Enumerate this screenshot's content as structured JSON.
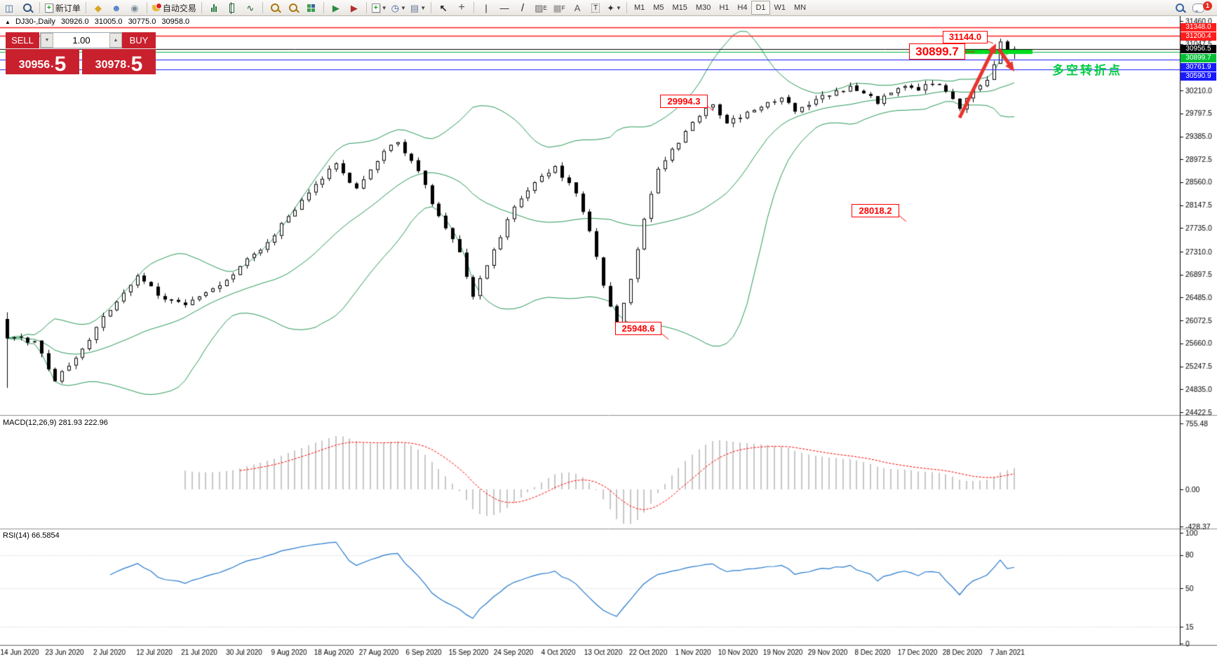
{
  "toolbar": {
    "new_order_label": "新订单",
    "autotrade_label": "自动交易",
    "text_tool": "A",
    "label_tool": "T",
    "channel_tool": "E",
    "fibo_tool": "F",
    "timeframes": [
      "M1",
      "M5",
      "M15",
      "M30",
      "H1",
      "H4",
      "D1",
      "W1",
      "MN"
    ],
    "active_timeframe": "D1",
    "notification_count": "1"
  },
  "header": {
    "collapse_icon": "▲",
    "symbol_period": "DJ30-,Daily",
    "open": "30926.0",
    "high": "31005.0",
    "low": "30775.0",
    "close": "30958.0"
  },
  "trade_panel": {
    "sell_label": "SELL",
    "buy_label": "BUY",
    "volume": "1.00",
    "sell_int": "30956",
    "sell_frac": "5",
    "buy_int": "30978",
    "buy_frac": "5",
    "dot": "."
  },
  "annotations": {
    "a31144": "31144.0",
    "a30899": "30899.7",
    "a29994": "29994.3",
    "a28018": "28018.2",
    "a25948": "25948.6",
    "turning_point": "多空转折点"
  },
  "indicator_labels": {
    "macd": "MACD(12,26,9) 281.93 222.96",
    "rsi": "RSI(14) 66.5854"
  },
  "chart_data": {
    "type": "candlestick",
    "symbol": "DJ30-",
    "timeframe": "Daily",
    "bar_count": 148,
    "ylim": [
      24422.5,
      31460.0
    ],
    "last_bar": {
      "open": 30926.0,
      "high": 31005.0,
      "low": 30775.0,
      "close": 30958.0
    },
    "swing_high": 31144.0,
    "price_axis_ticks": [
      "31460.0",
      "31047.5",
      "30210.0",
      "29797.5",
      "29385.0",
      "28972.5",
      "28560.0",
      "28147.5",
      "27735.0",
      "27310.0",
      "26897.5",
      "26485.0",
      "26072.5",
      "25660.0",
      "25247.5",
      "24835.0",
      "24422.5"
    ],
    "close_waypoints": [
      [
        0,
        25750
      ],
      [
        4,
        25700
      ],
      [
        7,
        24980
      ],
      [
        10,
        25400
      ],
      [
        14,
        26150
      ],
      [
        19,
        26880
      ],
      [
        22,
        26520
      ],
      [
        26,
        26350
      ],
      [
        30,
        26650
      ],
      [
        34,
        27050
      ],
      [
        38,
        27480
      ],
      [
        42,
        28060
      ],
      [
        46,
        28620
      ],
      [
        48,
        28900
      ],
      [
        51,
        28450
      ],
      [
        55,
        29120
      ],
      [
        57,
        29280
      ],
      [
        60,
        28760
      ],
      [
        63,
        27950
      ],
      [
        66,
        27300
      ],
      [
        68,
        26500
      ],
      [
        71,
        27350
      ],
      [
        74,
        28120
      ],
      [
        77,
        28560
      ],
      [
        80,
        28850
      ],
      [
        83,
        28360
      ],
      [
        85,
        27680
      ],
      [
        87,
        26700
      ],
      [
        89,
        25990
      ],
      [
        91,
        26820
      ],
      [
        93,
        27900
      ],
      [
        95,
        28800
      ],
      [
        97,
        29160
      ],
      [
        99,
        29480
      ],
      [
        101,
        29750
      ],
      [
        103,
        29960
      ],
      [
        105,
        29620
      ],
      [
        107,
        29720
      ],
      [
        109,
        29860
      ],
      [
        111,
        30000
      ],
      [
        113,
        30080
      ],
      [
        115,
        29830
      ],
      [
        117,
        29950
      ],
      [
        119,
        30130
      ],
      [
        121,
        30210
      ],
      [
        123,
        30290
      ],
      [
        125,
        30160
      ],
      [
        127,
        29970
      ],
      [
        129,
        30170
      ],
      [
        131,
        30290
      ],
      [
        133,
        30210
      ],
      [
        135,
        30330
      ],
      [
        137,
        30190
      ],
      [
        139,
        29880
      ],
      [
        141,
        30220
      ],
      [
        143,
        30400
      ],
      [
        144,
        30680
      ],
      [
        145,
        31090
      ],
      [
        146,
        30890
      ],
      [
        147,
        30958
      ]
    ],
    "bollinger": {
      "period": 20,
      "deviation": 2
    },
    "levels": [
      {
        "price": 31348.0,
        "color": "#ff1d1d",
        "badge_bg": "#ff1d1d",
        "label": "31348.0",
        "width": 1.4
      },
      {
        "price": 31200.4,
        "color": "#ff1d1d",
        "badge_bg": "#ff1d1d",
        "label": "31200.4",
        "width": 1.4
      },
      {
        "price": 30956.5,
        "color": "#000000",
        "badge_bg": "#000000",
        "label": "30956.5",
        "width": 1
      },
      {
        "price": 30899.7,
        "color": "#00b43c",
        "badge_bg": "#00bf34",
        "label": "30899.7",
        "width": 1.2
      },
      {
        "price": 30761.9,
        "color": "#1a1aff",
        "badge_bg": "#1a1aff",
        "label": "30761.9",
        "width": 1.2
      },
      {
        "price": 30590.9,
        "color": "#1a1aff",
        "badge_bg": "#1a1aff",
        "label": "30590.9",
        "width": 1.2
      }
    ],
    "highlight_segment": {
      "price": 30899.7,
      "color": "#00dd22"
    },
    "macd": {
      "fast": 12,
      "slow": 26,
      "signal": 9,
      "current_main": 281.93,
      "current_signal": 222.96,
      "axis_ticks": [
        "755.48",
        "0.00",
        "-428.37"
      ],
      "axis_values": [
        755.48,
        0.0,
        -428.37
      ]
    },
    "rsi": {
      "period": 14,
      "current": 66.5854,
      "axis_ticks": [
        "100",
        "80",
        "50",
        "15",
        "0"
      ],
      "axis_values": [
        100,
        80,
        50,
        15,
        0
      ],
      "dotted_levels": [
        80,
        50,
        15
      ]
    },
    "date_labels": [
      "14 Jun 2020",
      "23 Jun 2020",
      "2 Jul 2020",
      "12 Jul 2020",
      "21 Jul 2020",
      "30 Jul 2020",
      "9 Aug 2020",
      "18 Aug 2020",
      "27 Aug 2020",
      "6 Sep 2020",
      "15 Sep 2020",
      "24 Sep 2020",
      "4 Oct 2020",
      "13 Oct 2020",
      "22 Oct 2020",
      "1 Nov 2020",
      "10 Nov 2020",
      "19 Nov 2020",
      "29 Nov 2020",
      "8 Dec 2020",
      "17 Dec 2020",
      "28 Dec 2020",
      "7 Jan 2021"
    ]
  }
}
